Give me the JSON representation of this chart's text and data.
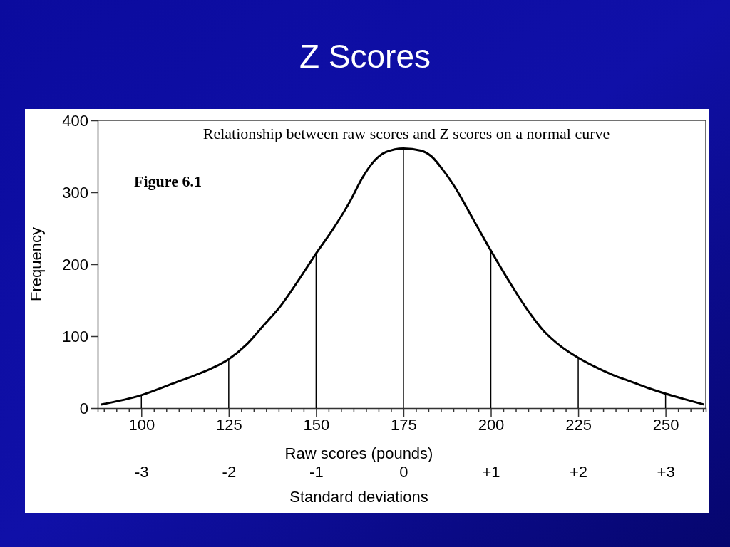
{
  "chart_data": {
    "type": "line",
    "title": "Z Scores",
    "subtitle": "Relationship between raw scores and Z scores on a normal curve",
    "xlabel": "Raw scores (pounds)",
    "ylabel": "Frequency",
    "x2label": "Standard deviations",
    "annotations": [
      "Figure 6.1"
    ],
    "xlim": [
      87.5,
      261.5
    ],
    "ylim": [
      0,
      400
    ],
    "yticks": [
      0,
      100,
      200,
      300,
      400
    ],
    "xticks": [
      {
        "value": 89.29,
        "label": null
      },
      {
        "value": 92.86,
        "label": null
      },
      {
        "value": 96.43,
        "label": null
      },
      100,
      {
        "value": 103.57,
        "label": null
      },
      {
        "value": 107.14,
        "label": null
      },
      {
        "value": 110.71,
        "label": null
      },
      {
        "value": 114.29,
        "label": null
      },
      {
        "value": 117.86,
        "label": null
      },
      {
        "value": 121.43,
        "label": null
      },
      125,
      {
        "value": 128.57,
        "label": null
      },
      {
        "value": 132.14,
        "label": null
      },
      {
        "value": 135.71,
        "label": null
      },
      {
        "value": 139.29,
        "label": null
      },
      {
        "value": 142.86,
        "label": null
      },
      {
        "value": 146.43,
        "label": null
      },
      150,
      {
        "value": 153.57,
        "label": null
      },
      {
        "value": 157.14,
        "label": null
      },
      {
        "value": 160.71,
        "label": null
      },
      {
        "value": 164.29,
        "label": null
      },
      {
        "value": 167.86,
        "label": null
      },
      {
        "value": 171.43,
        "label": null
      },
      175,
      {
        "value": 178.57,
        "label": null
      },
      {
        "value": 182.14,
        "label": null
      },
      {
        "value": 185.71,
        "label": null
      },
      {
        "value": 189.29,
        "label": null
      },
      {
        "value": 192.86,
        "label": null
      },
      {
        "value": 196.43,
        "label": null
      },
      200,
      {
        "value": 203.57,
        "label": null
      },
      {
        "value": 207.14,
        "label": null
      },
      {
        "value": 210.71,
        "label": null
      },
      {
        "value": 214.29,
        "label": null
      },
      {
        "value": 217.86,
        "label": null
      },
      {
        "value": 221.43,
        "label": null
      },
      225,
      {
        "value": 228.57,
        "label": null
      },
      {
        "value": 232.14,
        "label": null
      },
      {
        "value": 235.71,
        "label": null
      },
      {
        "value": 239.29,
        "label": null
      },
      {
        "value": 242.86,
        "label": null
      },
      {
        "value": 246.43,
        "label": null
      },
      250,
      {
        "value": 253.57,
        "label": null
      },
      {
        "value": 257.14,
        "label": null
      },
      {
        "value": 260.71,
        "label": null
      }
    ],
    "x2lim": [
      -3.5,
      3.46
    ],
    "x2ticks": [
      -3,
      -2,
      -1,
      0,
      {
        "value": 1,
        "label": "+1"
      },
      {
        "value": 2,
        "label": "+2"
      },
      {
        "value": 3,
        "label": "+3"
      }
    ],
    "series": [
      {
        "color": "#000000",
        "x": [
          88.5,
          100,
          110,
          115,
          120,
          125,
          130,
          135,
          140,
          145,
          150,
          155,
          160,
          163,
          166,
          170,
          175,
          180,
          183,
          186,
          190,
          195,
          200,
          205,
          210,
          215,
          220,
          225,
          230,
          235,
          240,
          245,
          250,
          255,
          261
        ],
        "values": [
          5,
          18,
          36,
          45,
          55,
          68,
          88,
          115,
          143,
          178,
          215,
          250,
          290,
          318,
          340,
          356,
          361,
          358,
          350,
          333,
          305,
          262,
          219,
          178,
          140,
          108,
          86,
          70,
          57,
          46,
          37,
          28,
          20,
          13,
          5
        ]
      },
      {
        "type": "bar",
        "color": "#000000",
        "x": [
          100,
          125,
          150,
          175,
          200,
          225,
          250
        ],
        "values": [
          18,
          68,
          215,
          361,
          219,
          70,
          20
        ]
      }
    ]
  }
}
